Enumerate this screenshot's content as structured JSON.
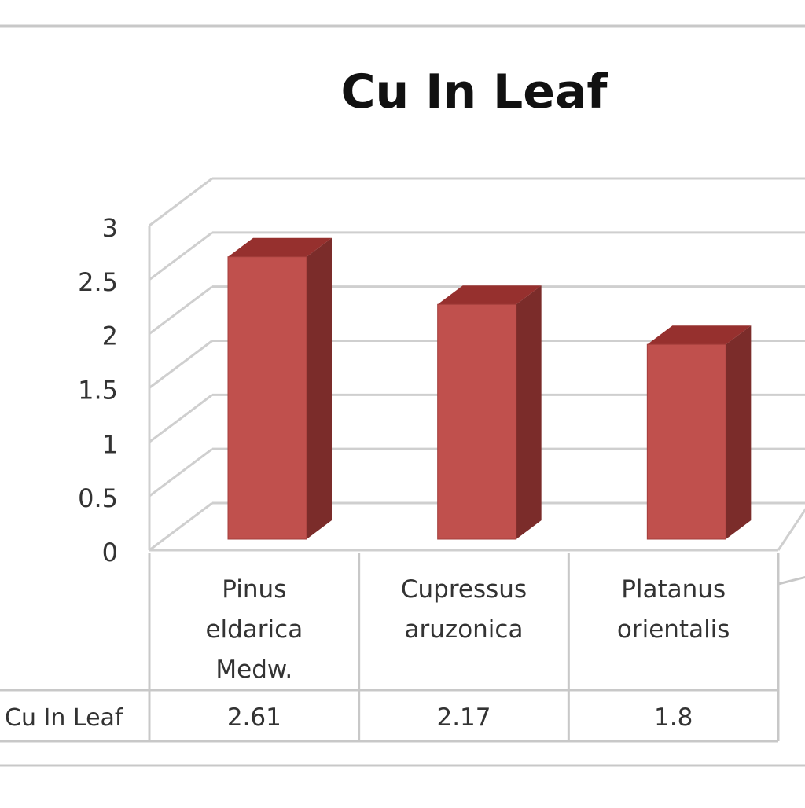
{
  "chart_data": {
    "type": "bar",
    "title": "Cu In Leaf",
    "categories": [
      "Pinus eldarica Medw.",
      "Cupressus aruzonica",
      "Platanus orientalis"
    ],
    "category_lines": [
      [
        "Pinus",
        "eldarica",
        "Medw."
      ],
      [
        "Cupressus",
        "aruzonica"
      ],
      [
        "Platanus",
        "orientalis"
      ]
    ],
    "series": [
      {
        "name": "Cu In Leaf",
        "values": [
          2.61,
          2.17,
          1.8
        ]
      }
    ],
    "data_table_values": [
      "2.61",
      "2.17",
      "1.8"
    ],
    "yticks": [
      "0",
      "0.5",
      "1",
      "1.5",
      "2",
      "2.5",
      "3"
    ],
    "ylim": [
      0,
      3
    ],
    "grid": true,
    "legend": "data table below chart",
    "style": "3d-column",
    "colors": {
      "bar_front": "#c0504d",
      "bar_side": "#7b2c2a",
      "bar_top": "#96302e",
      "grid": "#cfcfcf",
      "border": "#c8c8c8",
      "text": "#333333",
      "title": "#111111"
    }
  }
}
